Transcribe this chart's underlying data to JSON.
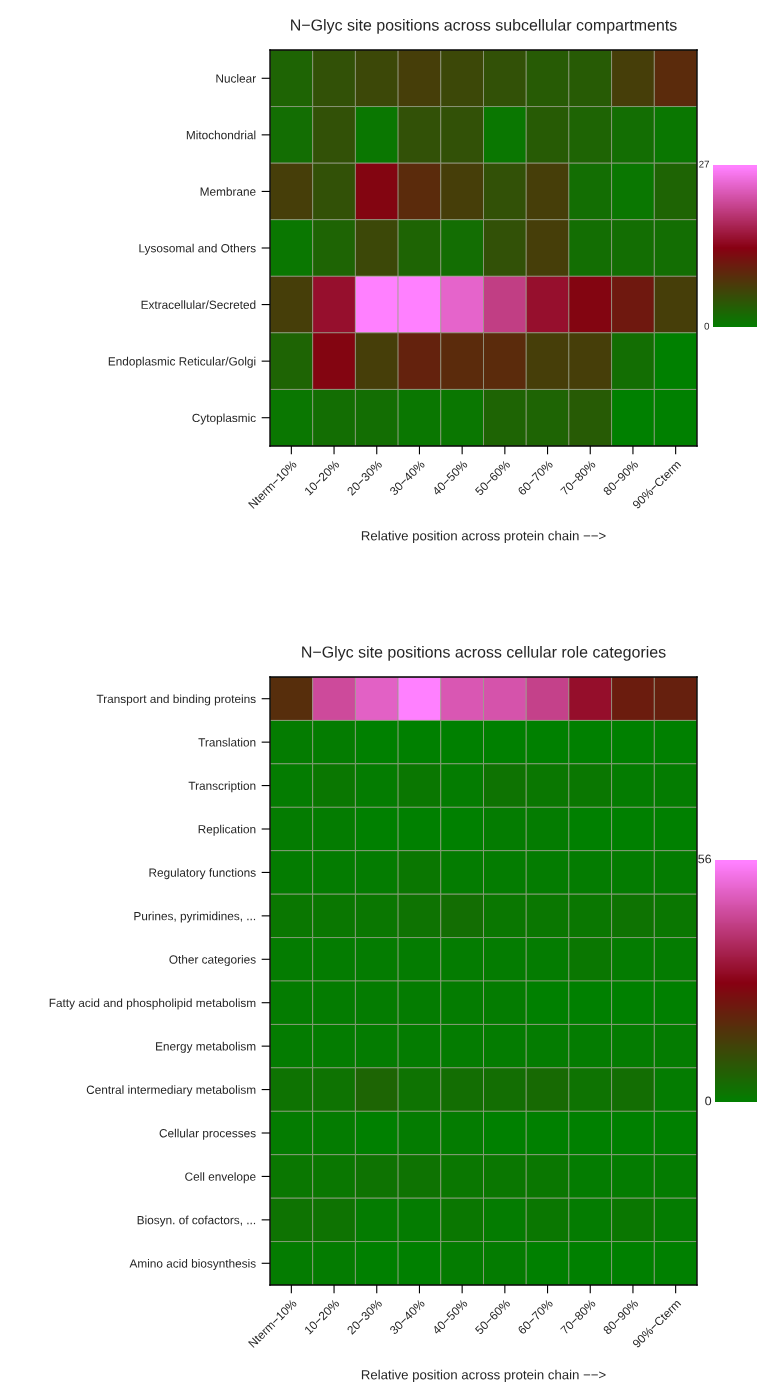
{
  "chart_data": [
    {
      "type": "heatmap",
      "title": "N−Glyc site positions across subcellular compartments",
      "xlabel": "Relative position across protein chain −−>",
      "categories": [
        "Nterm−10%",
        "10−20%",
        "20−30%",
        "30−40%",
        "40−50%",
        "50−60%",
        "60−70%",
        "70−80%",
        "80−90%",
        "90%−Cterm"
      ],
      "y_categories": [
        "Nuclear",
        "Mitochondrial",
        "Membrane",
        "Lysosomal and Others",
        "Extracellular/Secreted",
        "Endoplasmic Reticular/Golgi",
        "Cytoplasmic"
      ],
      "cells": [
        [
          3,
          5,
          6,
          7,
          6,
          5,
          4,
          4,
          7,
          9
        ],
        [
          2,
          5,
          1,
          5,
          5,
          1,
          4,
          3,
          2,
          1
        ],
        [
          7,
          5,
          13,
          9,
          7,
          5,
          7,
          2,
          1,
          3
        ],
        [
          1,
          3,
          6,
          3,
          2,
          5,
          7,
          2,
          2,
          2
        ],
        [
          7,
          15,
          27,
          27,
          24,
          20,
          15,
          13,
          11,
          7
        ],
        [
          3,
          13,
          7,
          10,
          9,
          9,
          7,
          7,
          2,
          0
        ],
        [
          1,
          2,
          2,
          1,
          1,
          3,
          3,
          4,
          0,
          0
        ]
      ],
      "clim": [
        0,
        27
      ],
      "cticks": [
        0,
        27
      ]
    },
    {
      "type": "heatmap",
      "title": "N−Glyc site positions across cellular role categories",
      "xlabel": "Relative position across protein chain −−>",
      "categories": [
        "Nterm−10%",
        "10−20%",
        "20−30%",
        "30−40%",
        "40−50%",
        "50−60%",
        "60−70%",
        "70−80%",
        "80−90%",
        "90%−Cterm"
      ],
      "y_categories": [
        "Transport and binding proteins",
        "Translation",
        "Transcription",
        "Replication",
        "Regulatory functions",
        "Purines, pyrimidines, ...",
        "Other categories",
        "Fatty acid and phospholipid metabolism",
        "Energy metabolism",
        "Central intermediary metabolism",
        "Cellular processes",
        "Cell envelope",
        "Biosyn. of cofactors, ...",
        "Amino acid biosynthesis"
      ],
      "cells": [
        [
          18,
          44,
          49,
          56,
          47,
          46,
          42,
          31,
          22,
          21
        ],
        [
          1,
          1,
          0,
          0,
          0,
          0,
          0,
          0,
          0,
          0
        ],
        [
          1,
          2,
          1,
          2,
          1,
          3,
          2,
          2,
          1,
          1
        ],
        [
          1,
          1,
          0,
          0,
          0,
          1,
          1,
          0,
          0,
          0
        ],
        [
          1,
          1,
          1,
          2,
          1,
          1,
          1,
          1,
          1,
          1
        ],
        [
          2,
          2,
          2,
          3,
          4,
          2,
          2,
          2,
          3,
          2
        ],
        [
          1,
          1,
          1,
          1,
          1,
          1,
          1,
          2,
          1,
          1
        ],
        [
          1,
          1,
          1,
          1,
          1,
          1,
          0,
          0,
          0,
          0
        ],
        [
          1,
          1,
          1,
          1,
          1,
          1,
          1,
          1,
          1,
          1
        ],
        [
          3,
          3,
          6,
          3,
          4,
          4,
          5,
          3,
          4,
          1
        ],
        [
          1,
          1,
          0,
          1,
          1,
          0,
          0,
          0,
          0,
          0
        ],
        [
          2,
          2,
          3,
          3,
          2,
          2,
          2,
          1,
          1,
          1
        ],
        [
          3,
          3,
          1,
          1,
          2,
          1,
          2,
          1,
          2,
          1
        ],
        [
          1,
          1,
          0,
          0,
          1,
          1,
          0,
          0,
          0,
          0
        ]
      ],
      "clim": [
        0,
        56
      ],
      "cticks": [
        0,
        56
      ]
    }
  ]
}
